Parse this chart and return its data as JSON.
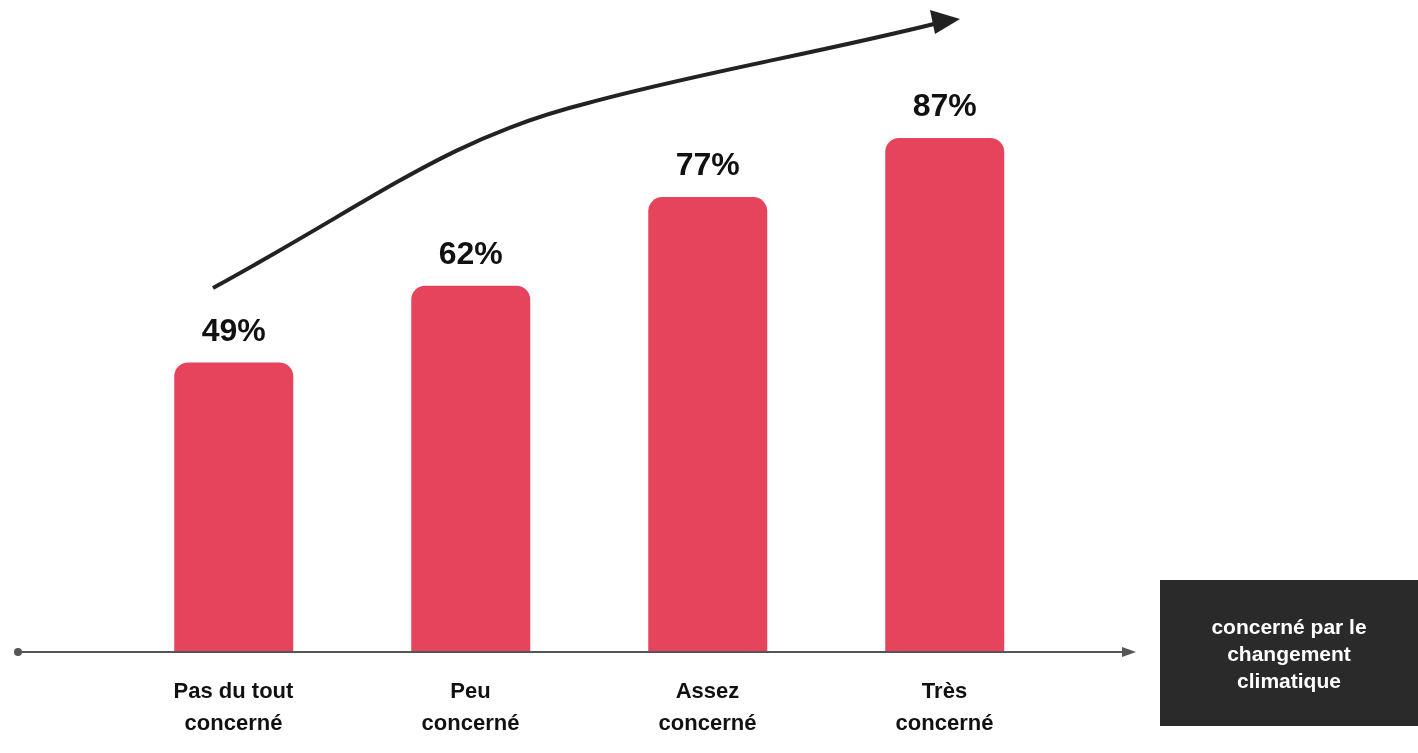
{
  "chart_data": {
    "type": "bar",
    "xlabel": "concerné par le changement climatique",
    "categories": [
      "Pas du tout concerné",
      "Peu concerné",
      "Assez concerné",
      "Très concerné"
    ],
    "values": [
      49,
      62,
      77,
      87
    ],
    "value_labels": [
      "49%",
      "62%",
      "77%",
      "87%"
    ],
    "color": "#e5445c",
    "grid": false,
    "legend": false
  }
}
